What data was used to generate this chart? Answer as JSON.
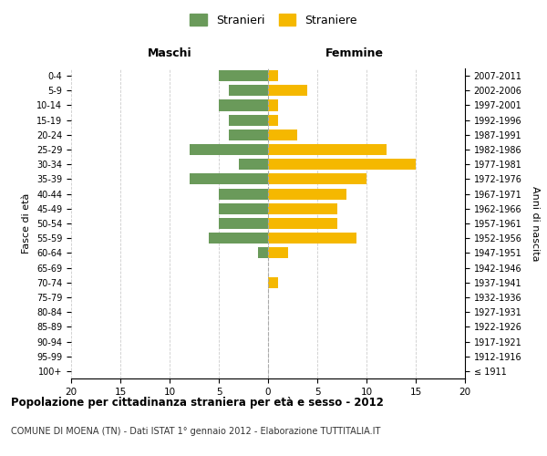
{
  "age_groups": [
    "100+",
    "95-99",
    "90-94",
    "85-89",
    "80-84",
    "75-79",
    "70-74",
    "65-69",
    "60-64",
    "55-59",
    "50-54",
    "45-49",
    "40-44",
    "35-39",
    "30-34",
    "25-29",
    "20-24",
    "15-19",
    "10-14",
    "5-9",
    "0-4"
  ],
  "birth_years": [
    "≤ 1911",
    "1912-1916",
    "1917-1921",
    "1922-1926",
    "1927-1931",
    "1932-1936",
    "1937-1941",
    "1942-1946",
    "1947-1951",
    "1952-1956",
    "1957-1961",
    "1962-1966",
    "1967-1971",
    "1972-1976",
    "1977-1981",
    "1982-1986",
    "1987-1991",
    "1992-1996",
    "1997-2001",
    "2002-2006",
    "2007-2011"
  ],
  "maschi": [
    0,
    0,
    0,
    0,
    0,
    0,
    0,
    0,
    1,
    6,
    5,
    5,
    5,
    8,
    3,
    8,
    4,
    4,
    5,
    4,
    5
  ],
  "femmine": [
    0,
    0,
    0,
    0,
    0,
    0,
    1,
    0,
    2,
    9,
    7,
    7,
    8,
    10,
    15,
    12,
    3,
    1,
    1,
    4,
    1
  ],
  "color_maschi": "#6a9a5a",
  "color_femmine": "#f5b800",
  "title": "Popolazione per cittadinanza straniera per età e sesso - 2012",
  "subtitle": "COMUNE DI MOENA (TN) - Dati ISTAT 1° gennaio 2012 - Elaborazione TUTTITALIA.IT",
  "legend_maschi": "Stranieri",
  "legend_femmine": "Straniere",
  "xlabel_left": "Maschi",
  "xlabel_right": "Femmine",
  "ylabel_left": "Fasce di età",
  "ylabel_right": "Anni di nascita",
  "xlim": 20,
  "background_color": "#ffffff",
  "grid_color": "#cccccc"
}
